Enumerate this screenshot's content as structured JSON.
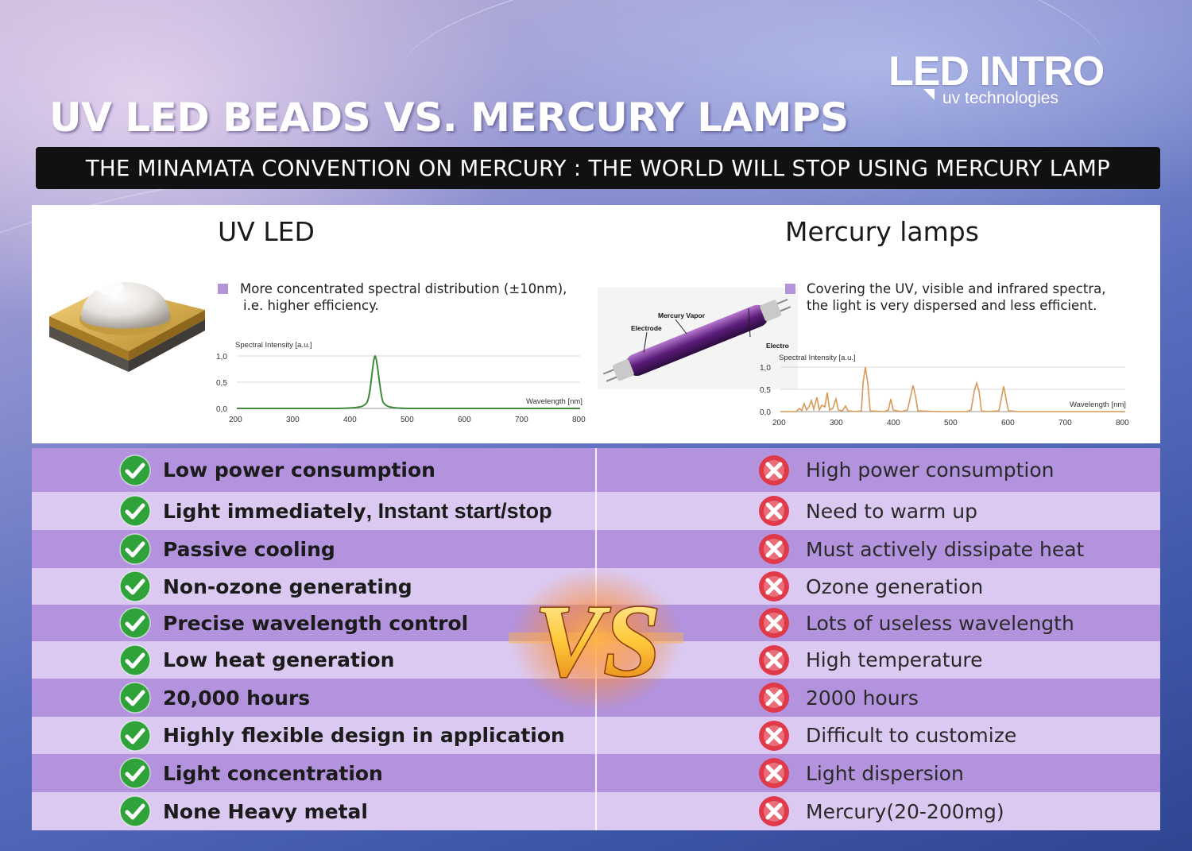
{
  "brand": {
    "name": "LED INTRO",
    "tagline": "uv technologies"
  },
  "header": {
    "title": "UV LED BEADS VS. MERCURY LAMPS",
    "banner": "THE MINAMATA CONVENTION ON MERCURY : THE WORLD WILL STOP USING MERCURY LAMP"
  },
  "uv_led": {
    "heading": "UV LED",
    "desc_lines": [
      "More concentrated spectral distribution (±10nm),",
      "i.e. higher efficiency."
    ],
    "chart": {
      "ylabel": "Spectral Intensity [a.u.]",
      "xlabel": "Wavelength [nm]",
      "yticks": [
        "0,0",
        "0,5",
        "1,0"
      ],
      "xticks": [
        "200",
        "300",
        "400",
        "500",
        "600",
        "700",
        "800"
      ]
    }
  },
  "mercury": {
    "heading": "Mercury lamps",
    "desc_lines": [
      "Covering the UV, visible and infrared spectra,",
      "the light is very dispersed and less efficient."
    ],
    "lamp_labels": {
      "vapor": "Mercury Vapor",
      "electrode_left": "Electrode",
      "electrode_right": "Electro"
    },
    "chart": {
      "ylabel": "Spectral Intensity [a.u.]",
      "xlabel": "Wavelength [nm]",
      "yticks": [
        "0,0",
        "0,5",
        "1,0"
      ],
      "xticks": [
        "200",
        "300",
        "400",
        "500",
        "600",
        "700",
        "800"
      ]
    }
  },
  "vs_label": "VS",
  "comparison": {
    "pros": [
      "Low power consumption",
      "Light immediately",
      "Passive cooling",
      "Non-ozone generating",
      "Precise wavelength control",
      "Low heat generation",
      "20,000 hours",
      "Highly flexible design in application",
      "Light concentration",
      "None Heavy metal"
    ],
    "pro_extra": ", Instant start/stop",
    "cons": [
      "High power consumption",
      "Need to warm up",
      "Must actively dissipate heat",
      "Ozone generation",
      "Lots of useless wavelength",
      "High temperature",
      "2000 hours",
      "Difficult to customize",
      "Light dispersion",
      "Mercury(20-200mg)"
    ]
  },
  "colors": {
    "row_dark": "#b393dd",
    "row_light": "#dbc9f1",
    "check_green": "#2fa33a",
    "cross_red": "#e03a4a",
    "led_curve": "#3f8a3b",
    "mercury_curve": "#d89a55"
  }
}
